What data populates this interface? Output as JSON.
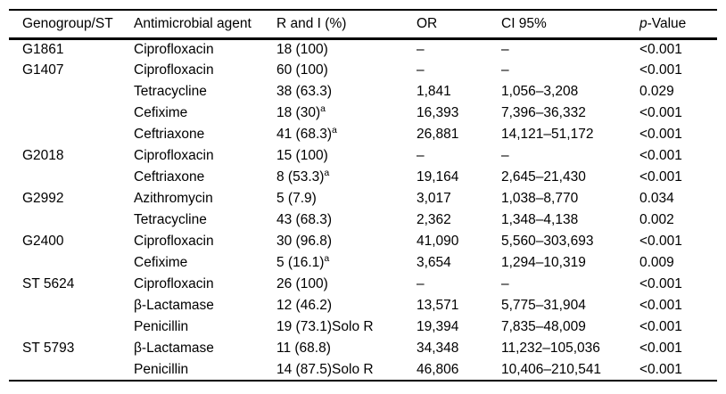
{
  "colors": {
    "background": "#ffffff",
    "text": "#000000",
    "rule": "#000000"
  },
  "table": {
    "columns": [
      {
        "key": "genogroup",
        "label": "Genogroup/ST"
      },
      {
        "key": "agent",
        "label": "Antimicrobial agent"
      },
      {
        "key": "r_and_i",
        "label": "R and I (%)"
      },
      {
        "key": "or",
        "label": "OR"
      },
      {
        "key": "ci",
        "label": "CI 95%"
      },
      {
        "key": "p_value",
        "label_italic": "p",
        "label_rest": "-Value"
      }
    ],
    "rows": [
      {
        "genogroup": "G1861",
        "agent": "Ciprofloxacin",
        "r_and_i": "18 (100)",
        "footnote_marker": "",
        "or": "–",
        "ci": "–",
        "p_value": "<0.001"
      },
      {
        "genogroup": "G1407",
        "agent": "Ciprofloxacin",
        "r_and_i": "60 (100)",
        "footnote_marker": "",
        "or": "–",
        "ci": "–",
        "p_value": "<0.001"
      },
      {
        "genogroup": "",
        "agent": "Tetracycline",
        "r_and_i": "38 (63.3)",
        "footnote_marker": "",
        "or": "1,841",
        "ci": "1,056–3,208",
        "p_value": "0.029"
      },
      {
        "genogroup": "",
        "agent": "Cefixime",
        "r_and_i": "18 (30)",
        "footnote_marker": "a",
        "or": "16,393",
        "ci": "7,396–36,332",
        "p_value": "<0.001"
      },
      {
        "genogroup": "",
        "agent": "Ceftriaxone",
        "r_and_i": "41 (68.3)",
        "footnote_marker": "a",
        "or": "26,881",
        "ci": "14,121–51,172",
        "p_value": "<0.001"
      },
      {
        "genogroup": "G2018",
        "agent": "Ciprofloxacin",
        "r_and_i": "15 (100)",
        "footnote_marker": "",
        "or": "–",
        "ci": "–",
        "p_value": "<0.001"
      },
      {
        "genogroup": "",
        "agent": "Ceftriaxone",
        "r_and_i": "8 (53.3)",
        "footnote_marker": "a",
        "or": "19,164",
        "ci": "2,645–21,430",
        "p_value": "<0.001"
      },
      {
        "genogroup": "G2992",
        "agent": "Azithromycin",
        "r_and_i": "5 (7.9)",
        "footnote_marker": "",
        "or": "3,017",
        "ci": "1,038–8,770",
        "p_value": "0.034"
      },
      {
        "genogroup": "",
        "agent": "Tetracycline",
        "r_and_i": "43 (68.3)",
        "footnote_marker": "",
        "or": "2,362",
        "ci": "1,348–4,138",
        "p_value": "0.002"
      },
      {
        "genogroup": "G2400",
        "agent": "Ciprofloxacin",
        "r_and_i": "30 (96.8)",
        "footnote_marker": "",
        "or": "41,090",
        "ci": "5,560–303,693",
        "p_value": "<0.001"
      },
      {
        "genogroup": "",
        "agent": "Cefixime",
        "r_and_i": "5 (16.1)",
        "footnote_marker": "a",
        "or": "3,654",
        "ci": "1,294–10,319",
        "p_value": "0.009"
      },
      {
        "genogroup": "ST 5624",
        "agent": "Ciprofloxacin",
        "r_and_i": "26 (100)",
        "footnote_marker": "",
        "or": "–",
        "ci": "–",
        "p_value": "<0.001"
      },
      {
        "genogroup": "",
        "agent": "β-Lactamase",
        "r_and_i": "12 (46.2)",
        "footnote_marker": "",
        "or": "13,571",
        "ci": "5,775–31,904",
        "p_value": "<0.001"
      },
      {
        "genogroup": "",
        "agent": "Penicillin",
        "r_and_i": "19 (73.1)Solo R",
        "footnote_marker": "",
        "or": "19,394",
        "ci": "7,835–48,009",
        "p_value": "<0.001"
      },
      {
        "genogroup": "ST 5793",
        "agent": "β-Lactamase",
        "r_and_i": "11 (68.8)",
        "footnote_marker": "",
        "or": "34,348",
        "ci": "11,232–105,036",
        "p_value": "<0.001"
      },
      {
        "genogroup": "",
        "agent": "Penicillin",
        "r_and_i": "14 (87.5)Solo R",
        "footnote_marker": "",
        "or": "46,806",
        "ci": "10,406–210,541",
        "p_value": "<0.001"
      }
    ]
  }
}
